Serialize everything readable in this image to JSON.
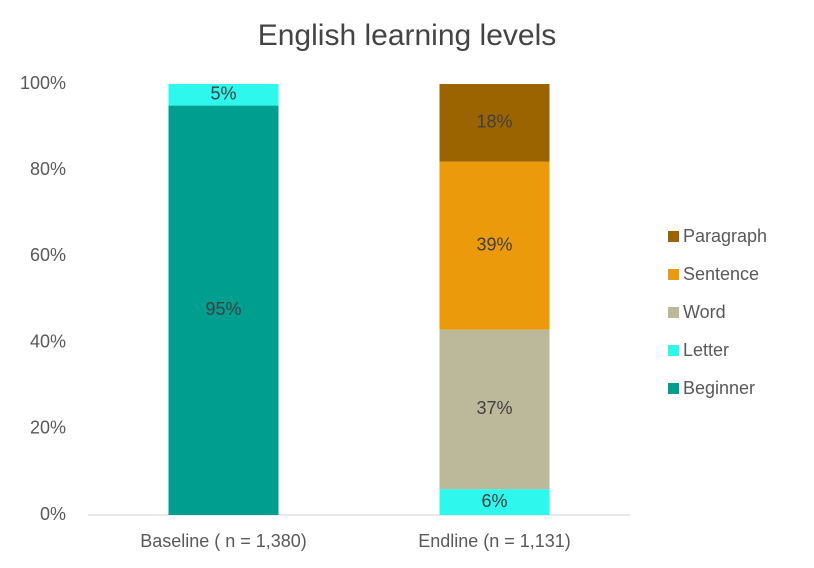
{
  "chart_data": {
    "type": "stacked_bar",
    "title": "English learning levels",
    "categories": [
      "Baseline ( n = 1,380)",
      "Endline (n = 1,131)"
    ],
    "series": [
      {
        "name": "Beginner",
        "color": "#009e8e",
        "values": [
          95,
          0
        ],
        "value_labels": [
          "95%",
          null
        ]
      },
      {
        "name": "Letter",
        "color": "#2ef8ee",
        "values": [
          5,
          6
        ],
        "value_labels": [
          "5%",
          "6%"
        ]
      },
      {
        "name": "Word",
        "color": "#bcb89a",
        "values": [
          0,
          37
        ],
        "value_labels": [
          null,
          "37%"
        ]
      },
      {
        "name": "Sentence",
        "color": "#eb9a0c",
        "values": [
          0,
          39
        ],
        "value_labels": [
          null,
          "39%"
        ]
      },
      {
        "name": "Paragraph",
        "color": "#9c6400",
        "values": [
          0,
          18
        ],
        "value_labels": [
          null,
          "18%"
        ]
      }
    ],
    "ylim": [
      0,
      100
    ],
    "yticks": [
      {
        "value": 0,
        "label": "0%"
      },
      {
        "value": 20,
        "label": "20%"
      },
      {
        "value": 40,
        "label": "40%"
      },
      {
        "value": 60,
        "label": "60%"
      },
      {
        "value": 80,
        "label": "80%"
      },
      {
        "value": 100,
        "label": "100%"
      }
    ],
    "grid": false,
    "legend": "right"
  }
}
